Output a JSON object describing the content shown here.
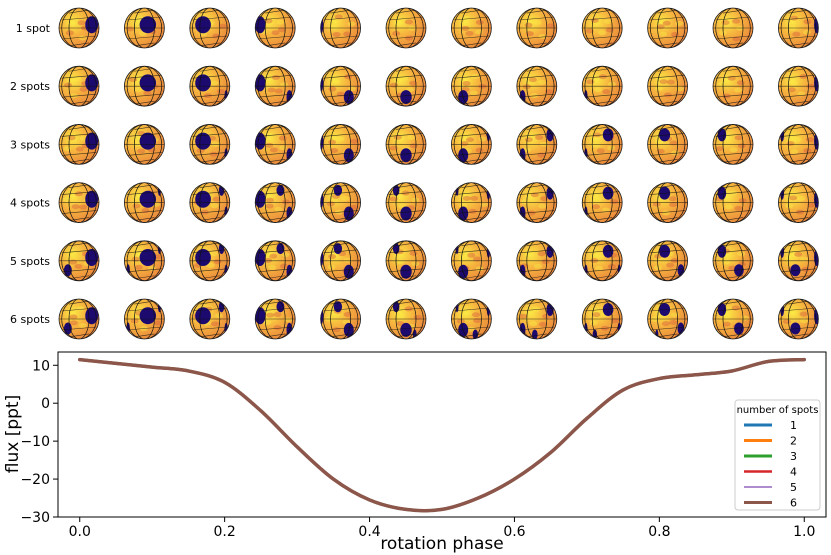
{
  "chart_data": {
    "type": "line",
    "rows": [
      {
        "label": "1 spot",
        "n": 1
      },
      {
        "label": "2 spots",
        "n": 2
      },
      {
        "label": "3 spots",
        "n": 3
      },
      {
        "label": "4 spots",
        "n": 4
      },
      {
        "label": "5 spots",
        "n": 5
      },
      {
        "label": "6 spots",
        "n": 6
      }
    ],
    "phase_columns": 12,
    "xlabel": "rotation phase",
    "ylabel": "flux [ppt]",
    "xlim": [
      -0.03,
      1.03
    ],
    "ylim": [
      -30,
      13.5
    ],
    "xticks": [
      0.0,
      0.2,
      0.4,
      0.6,
      0.8,
      1.0
    ],
    "xtick_labels": [
      "0.0",
      "0.2",
      "0.4",
      "0.6",
      "0.8",
      "1.0"
    ],
    "yticks": [
      -30,
      -20,
      -10,
      0,
      10
    ],
    "ytick_labels": [
      "−30",
      "−20",
      "−10",
      "0",
      "10"
    ],
    "x": [
      0.0,
      0.05,
      0.1,
      0.15,
      0.2,
      0.25,
      0.3,
      0.35,
      0.4,
      0.45,
      0.5,
      0.55,
      0.6,
      0.65,
      0.7,
      0.75,
      0.8,
      0.85,
      0.9,
      0.95,
      1.0
    ],
    "series": [
      {
        "name": "1",
        "color": "#1f77b4",
        "width": 3
      },
      {
        "name": "2",
        "color": "#ff7f0e",
        "width": 3
      },
      {
        "name": "3",
        "color": "#2ca02c",
        "width": 3
      },
      {
        "name": "4",
        "color": "#d62728",
        "width": 2.5
      },
      {
        "name": "5",
        "color": "#9467bd",
        "width": 1.5
      },
      {
        "name": "6",
        "color": "#8c564b",
        "width": 3.5
      }
    ],
    "flux": [
      11.5,
      10.5,
      9.5,
      8.5,
      5.5,
      -2.0,
      -11.5,
      -20.0,
      -25.5,
      -28.0,
      -28.0,
      -25.0,
      -20.0,
      -13.0,
      -4.0,
      3.5,
      6.5,
      7.5,
      8.5,
      11.0,
      11.5
    ],
    "legend": {
      "title": "number of spots",
      "position": "lower-right"
    },
    "colors": {
      "spot": "#1c0a6e",
      "surface": "#f4a23c",
      "bright": "#fbe844",
      "grid": "#111111"
    }
  }
}
